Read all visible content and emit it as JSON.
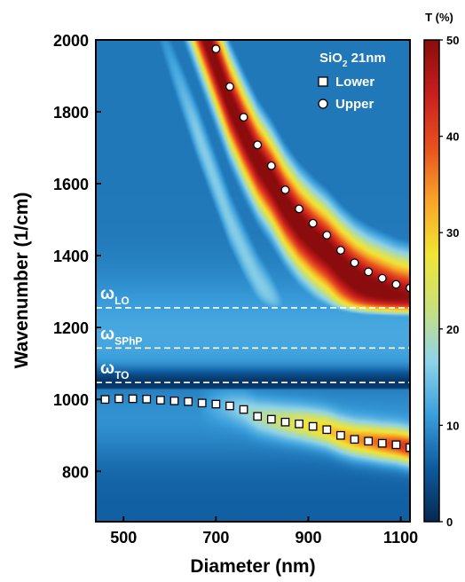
{
  "chart_data": {
    "type": "heatmap",
    "title": "",
    "xlabel": "Diameter (nm)",
    "ylabel": "Wavenumber (1/cm)",
    "xlim": [
      440,
      1120
    ],
    "ylim": [
      660,
      2000
    ],
    "x_ticks": [
      500,
      700,
      900,
      1100
    ],
    "y_ticks": [
      800,
      1000,
      1200,
      1400,
      1600,
      1800,
      2000
    ],
    "colorbar": {
      "label": "T (%)",
      "range": [
        0,
        50
      ],
      "ticks": [
        0,
        10,
        20,
        30,
        40,
        50
      ],
      "colors": [
        "#062952",
        "#0d5a9e",
        "#3b9fdc",
        "#8fd3e8",
        "#c9e07a",
        "#f2e534",
        "#f8a428",
        "#e8501e",
        "#c81e1e",
        "#8a0c0c"
      ]
    },
    "sample_label": {
      "main": "SiO",
      "sub": "2",
      "rest": " 21nm"
    },
    "legend": {
      "placement": "top-right",
      "entries": [
        {
          "name": "Lower",
          "marker": "square"
        },
        {
          "name": "Upper",
          "marker": "circle"
        }
      ]
    },
    "reference_lines": [
      {
        "symbol": "ω",
        "subscript": "LO",
        "y": 1255
      },
      {
        "symbol": "ω",
        "subscript": "SPhP",
        "y": 1143
      },
      {
        "symbol": "ω",
        "subscript": "TO",
        "y": 1047
      }
    ],
    "series": [
      {
        "name": "Upper",
        "marker": "circle",
        "x": [
          700,
          730,
          760,
          790,
          820,
          850,
          880,
          910,
          940,
          970,
          1000,
          1030,
          1060,
          1090,
          1120
        ],
        "y": [
          1975,
          1870,
          1785,
          1708,
          1650,
          1583,
          1530,
          1490,
          1457,
          1415,
          1380,
          1355,
          1337,
          1320,
          1310
        ]
      },
      {
        "name": "Lower",
        "marker": "square",
        "x": [
          460,
          490,
          520,
          550,
          580,
          610,
          640,
          670,
          700,
          730,
          760,
          790,
          820,
          850,
          880,
          910,
          940,
          970,
          1000,
          1030,
          1060,
          1090,
          1120
        ],
        "y": [
          1000,
          1002,
          1002,
          1001,
          998,
          996,
          994,
          990,
          987,
          982,
          972,
          953,
          945,
          937,
          932,
          925,
          916,
          900,
          889,
          884,
          878,
          874,
          866
        ]
      }
    ]
  }
}
